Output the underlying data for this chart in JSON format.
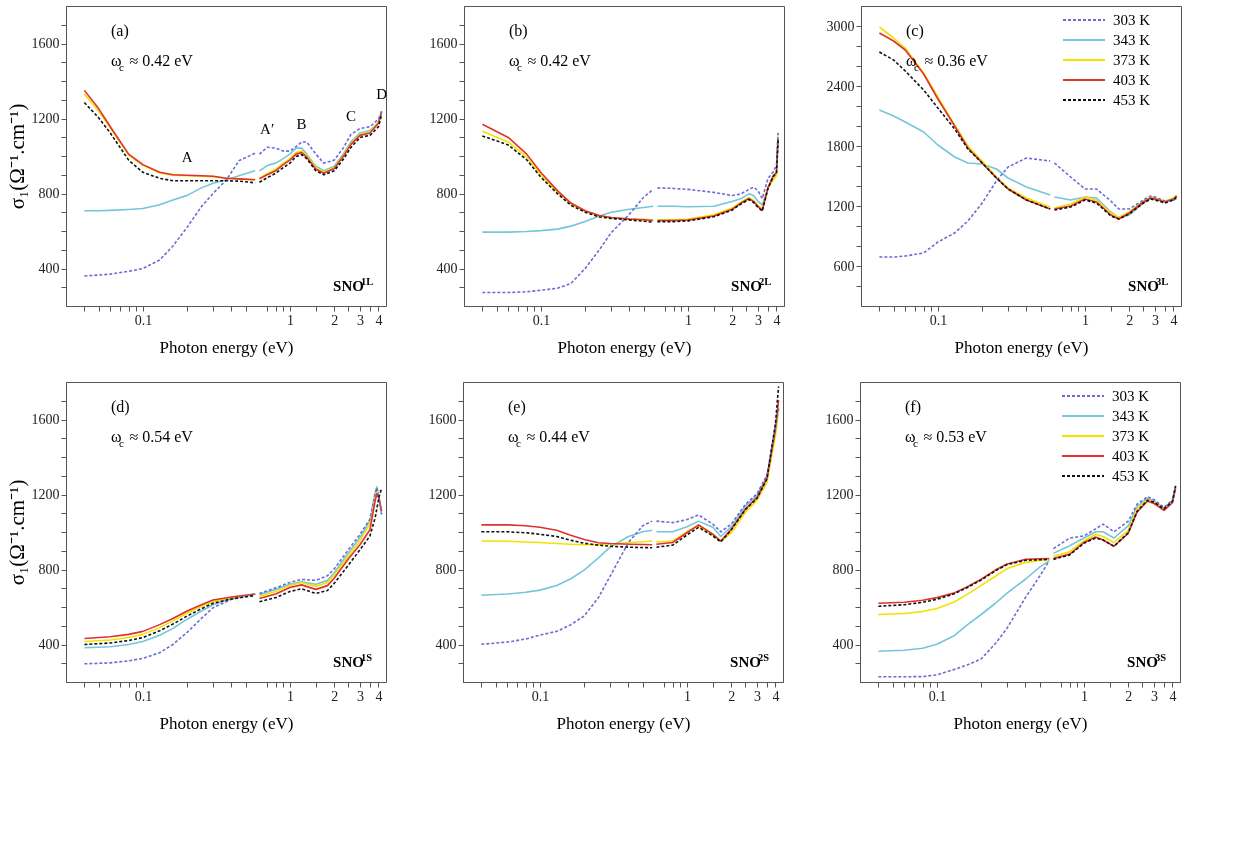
{
  "chart_data": [
    {
      "type": "line",
      "log": "x",
      "xlim": [
        0.03,
        4.5
      ],
      "ylim": [
        200,
        1800
      ],
      "ylabel": "σ₁(Ω⁻¹.cm⁻¹)",
      "xlabel": "Photon energy (eV)",
      "annotations": [
        "(a)",
        "ω$_{c}$ ≈ 0.42 eV",
        "SNO$^{1L}$",
        {
          "text": "A",
          "x": 0.2,
          "y": 897
        },
        {
          "text": "A′",
          "x": 0.7,
          "y": 1047
        },
        {
          "text": "B",
          "x": 1.2,
          "y": 1075
        },
        {
          "text": "C",
          "x": 2.6,
          "y": 1115
        },
        {
          "text": "D",
          "x": 4.2,
          "y": 1236
        }
      ],
      "xticks": [
        {
          "value": 0.04,
          "label": null
        },
        {
          "value": 0.05,
          "label": null
        },
        {
          "value": 0.06,
          "label": null
        },
        {
          "value": 0.07,
          "label": null
        },
        {
          "value": 0.08,
          "label": null
        },
        {
          "value": 0.09,
          "label": null
        },
        0.1,
        {
          "value": 0.2,
          "label": null
        },
        {
          "value": 0.3,
          "label": null
        },
        {
          "value": 0.4,
          "label": null
        },
        {
          "value": 0.5,
          "label": null
        },
        {
          "value": 0.7,
          "label": null
        },
        {
          "value": 0.8,
          "label": null
        },
        {
          "value": 0.9,
          "label": null
        },
        1,
        {
          "value": 1.5,
          "label": null
        },
        2,
        {
          "value": 2.5,
          "label": null
        },
        3,
        {
          "value": 3.5,
          "label": null
        },
        4
      ],
      "yticks": [
        {
          "value": 300,
          "label": null
        },
        400,
        {
          "value": 500,
          "label": null
        },
        {
          "value": 600,
          "label": null
        },
        {
          "value": 700,
          "label": null
        },
        800,
        {
          "value": 900,
          "label": null
        },
        {
          "value": 1000,
          "label": null
        },
        {
          "value": 1100,
          "label": null
        },
        1200,
        {
          "value": 1300,
          "label": null
        },
        {
          "value": 1400,
          "label": null
        },
        {
          "value": 1500,
          "label": null
        },
        1600,
        {
          "value": 1700,
          "label": null
        }
      ],
      "x": [
        0.04,
        0.05,
        0.06,
        0.08,
        0.1,
        0.13,
        0.16,
        0.2,
        0.25,
        0.3,
        0.37,
        0.45,
        0.58,
        0.6,
        0.62,
        0.7,
        0.8,
        0.9,
        1,
        1.1,
        1.2,
        1.3,
        1.5,
        1.7,
        2,
        2.3,
        2.6,
        3,
        3.5,
        4,
        4.2
      ],
      "series": [
        {
          "color": "#6b6bd6",
          "line_style": "dashed",
          "values": [
            360,
            365,
            370,
            385,
            400,
            445,
            520,
            620,
            730,
            800,
            873,
            975,
            1015,
            null,
            1010,
            1047,
            1042,
            1026,
            1026,
            1050,
            1075,
            1075,
            1010,
            962,
            978,
            1042,
            1115,
            1147,
            1156,
            1196,
            1236
          ]
        },
        {
          "color": "#74c6d9",
          "line_style": "solid",
          "values": [
            708,
            708,
            710,
            715,
            720,
            740,
            765,
            790,
            830,
            855,
            873,
            895,
            921,
            null,
            921,
            949,
            962,
            986,
            1010,
            1042,
            1042,
            1010,
            946,
            921,
            946,
            1010,
            1075,
            1123,
            1136,
            1180,
            1228
          ]
        },
        {
          "color": "#f2e200",
          "line_style": "solid",
          "values": [
            1330,
            1240,
            1150,
            1005,
            950,
            910,
            897,
            895,
            892,
            890,
            881,
            878,
            873,
            null,
            881,
            905,
            929,
            962,
            986,
            1018,
            1026,
            1002,
            938,
            913,
            938,
            1002,
            1067,
            1115,
            1128,
            1180,
            1236
          ]
        },
        {
          "color": "#e0322c",
          "line_style": "solid",
          "values": [
            1350,
            1253,
            1156,
            1010,
            954,
            913,
            900,
            897,
            895,
            892,
            881,
            878,
            873,
            null,
            878,
            900,
            921,
            954,
            978,
            1010,
            1018,
            994,
            929,
            908,
            933,
            997,
            1062,
            1110,
            1123,
            1175,
            1239
          ]
        },
        {
          "color": "#111111",
          "line_style": "dashed",
          "values": [
            1285,
            1204,
            1123,
            978,
            913,
            881,
            868,
            868,
            868,
            868,
            868,
            866,
            857,
            null,
            860,
            884,
            908,
            938,
            962,
            997,
            1007,
            986,
            921,
            900,
            921,
            981,
            1046,
            1099,
            1110,
            1156,
            1220
          ]
        }
      ]
    },
    {
      "type": "line",
      "log": "x",
      "xlim": [
        0.03,
        4.5
      ],
      "ylim": [
        200,
        1800
      ],
      "xlabel": "Photon energy (eV)",
      "annotations": [
        "(b)",
        "ω$_{c}$ ≈ 0.42 eV",
        "SNO$^{2L}$"
      ],
      "xticks": [
        {
          "value": 0.04,
          "label": null
        },
        {
          "value": 0.05,
          "label": null
        },
        {
          "value": 0.06,
          "label": null
        },
        {
          "value": 0.07,
          "label": null
        },
        {
          "value": 0.08,
          "label": null
        },
        {
          "value": 0.09,
          "label": null
        },
        0.1,
        {
          "value": 0.2,
          "label": null
        },
        {
          "value": 0.3,
          "label": null
        },
        {
          "value": 0.4,
          "label": null
        },
        {
          "value": 0.5,
          "label": null
        },
        {
          "value": 0.7,
          "label": null
        },
        {
          "value": 0.8,
          "label": null
        },
        {
          "value": 0.9,
          "label": null
        },
        1,
        {
          "value": 1.5,
          "label": null
        },
        2,
        {
          "value": 2.5,
          "label": null
        },
        3,
        {
          "value": 3.5,
          "label": null
        },
        4
      ],
      "yticks": [
        {
          "value": 300,
          "label": null
        },
        400,
        {
          "value": 500,
          "label": null
        },
        {
          "value": 600,
          "label": null
        },
        {
          "value": 700,
          "label": null
        },
        800,
        {
          "value": 900,
          "label": null
        },
        {
          "value": 1000,
          "label": null
        },
        {
          "value": 1100,
          "label": null
        },
        1200,
        {
          "value": 1300,
          "label": null
        },
        {
          "value": 1400,
          "label": null
        },
        {
          "value": 1500,
          "label": null
        },
        1600,
        {
          "value": 1700,
          "label": null
        }
      ],
      "x": [
        0.04,
        0.06,
        0.08,
        0.1,
        0.13,
        0.16,
        0.2,
        0.25,
        0.3,
        0.4,
        0.5,
        0.58,
        0.6,
        0.62,
        0.8,
        1,
        1.5,
        2,
        2.3,
        2.6,
        2.8,
        3,
        3.2,
        3.5,
        3.8,
        4,
        4.1
      ],
      "series": [
        {
          "color": "#6b6bd6",
          "line_style": "dashed",
          "values": [
            272,
            272,
            276,
            284,
            295,
            320,
            400,
            500,
            590,
            690,
            780,
            822,
            null,
            830,
            827,
            822,
            806,
            789,
            798,
            822,
            834,
            814,
            773,
            880,
            915,
            950,
            1124
          ]
        },
        {
          "color": "#74c6d9",
          "line_style": "solid",
          "values": [
            594,
            594,
            597,
            602,
            610,
            626,
            651,
            680,
            700,
            716,
            725,
            732,
            null,
            732,
            732,
            729,
            732,
            757,
            773,
            798,
            789,
            757,
            740,
            830,
            887,
            null,
            null
          ]
        },
        {
          "color": "#f2e200",
          "line_style": "solid",
          "values": [
            1132,
            1075,
            994,
            899,
            806,
            744,
            705,
            680,
            672,
            664,
            662,
            659,
            null,
            660,
            660,
            664,
            686,
            722,
            755,
            778,
            762,
            735,
            715,
            832,
            870,
            895,
            1115
          ]
        },
        {
          "color": "#e0322c",
          "line_style": "solid",
          "values": [
            1169,
            1099,
            1010,
            912,
            814,
            749,
            708,
            683,
            672,
            664,
            660,
            656,
            null,
            656,
            656,
            659,
            680,
            716,
            749,
            773,
            757,
            730,
            710,
            830,
            894,
            912,
            1091
          ]
        },
        {
          "color": "#111111",
          "line_style": "dashed",
          "values": [
            1107,
            1059,
            980,
            887,
            798,
            737,
            700,
            675,
            667,
            659,
            652,
            647,
            null,
            650,
            650,
            654,
            676,
            712,
            745,
            768,
            752,
            726,
            706,
            826,
            890,
            908,
            1085
          ]
        }
      ]
    },
    {
      "type": "line",
      "log": "x",
      "xlim": [
        0.03,
        4.5
      ],
      "ylim": [
        200,
        3200
      ],
      "xlabel": "Photon energy (eV)",
      "legend": "top right",
      "annotations": [
        "(c)",
        "ω$_{c}$ ≈ 0.36 eV",
        "SNO$^{3L}$"
      ],
      "xticks": [
        {
          "value": 0.04,
          "label": null
        },
        {
          "value": 0.05,
          "label": null
        },
        {
          "value": 0.06,
          "label": null
        },
        {
          "value": 0.07,
          "label": null
        },
        {
          "value": 0.08,
          "label": null
        },
        {
          "value": 0.09,
          "label": null
        },
        0.1,
        {
          "value": 0.2,
          "label": null
        },
        {
          "value": 0.3,
          "label": null
        },
        {
          "value": 0.4,
          "label": null
        },
        {
          "value": 0.5,
          "label": null
        },
        {
          "value": 0.7,
          "label": null
        },
        {
          "value": 0.8,
          "label": null
        },
        {
          "value": 0.9,
          "label": null
        },
        1,
        {
          "value": 1.5,
          "label": null
        },
        2,
        {
          "value": 2.5,
          "label": null
        },
        3,
        {
          "value": 3.5,
          "label": null
        },
        4
      ],
      "yticks": [
        {
          "value": 400,
          "label": null
        },
        600,
        {
          "value": 800,
          "label": null
        },
        {
          "value": 1000,
          "label": null
        },
        1200,
        {
          "value": 1400,
          "label": null
        },
        {
          "value": 1600,
          "label": null
        },
        1800,
        {
          "value": 2000,
          "label": null
        },
        {
          "value": 2200,
          "label": null
        },
        2400,
        {
          "value": 2600,
          "label": null
        },
        {
          "value": 2800,
          "label": null
        },
        3000
      ],
      "x": [
        0.04,
        0.05,
        0.06,
        0.08,
        0.1,
        0.13,
        0.16,
        0.2,
        0.25,
        0.3,
        0.4,
        0.58,
        0.6,
        0.62,
        0.8,
        1,
        1.2,
        1.5,
        1.7,
        2,
        2.5,
        2.8,
        3,
        3.5,
        4,
        4.2
      ],
      "series": [
        {
          "name": "303 K",
          "color": "#6b6bd6",
          "line_style": "dashed",
          "values": [
            690,
            690,
            700,
            730,
            840,
            930,
            1050,
            1230,
            1450,
            1590,
            1680,
            1650,
            null,
            1630,
            1490,
            1370,
            1370,
            1250,
            1170,
            1170,
            1260,
            1300,
            1290,
            1250,
            1260,
            1280
          ]
        },
        {
          "name": "343 K",
          "color": "#74c6d9",
          "line_style": "solid",
          "values": [
            2160,
            2100,
            2040,
            1940,
            1810,
            1690,
            1630,
            1620,
            1570,
            1480,
            1390,
            1310,
            null,
            1290,
            1260,
            1290,
            1280,
            1140,
            1080,
            1110,
            1230,
            1280,
            1270,
            1250,
            1260,
            1270
          ]
        },
        {
          "name": "373 K",
          "color": "#f2e200",
          "line_style": "solid",
          "values": [
            2990,
            2880,
            2780,
            2530,
            2290,
            2010,
            1800,
            1650,
            1490,
            1380,
            1280,
            1190,
            null,
            1180,
            1220,
            1290,
            1260,
            1130,
            1090,
            1140,
            1250,
            1290,
            1280,
            1250,
            1280,
            1310
          ]
        },
        {
          "name": "403 K",
          "color": "#e0322c",
          "line_style": "solid",
          "values": [
            2930,
            2850,
            2760,
            2520,
            2270,
            2000,
            1780,
            1630,
            1480,
            1370,
            1260,
            1170,
            null,
            1170,
            1200,
            1270,
            1240,
            1110,
            1070,
            1130,
            1240,
            1280,
            1270,
            1240,
            1270,
            1300
          ]
        },
        {
          "name": "453 K",
          "color": "#111111",
          "line_style": "dashed",
          "values": [
            2740,
            2660,
            2550,
            2360,
            2180,
            1970,
            1770,
            1630,
            1480,
            1370,
            1260,
            1170,
            null,
            1160,
            1190,
            1260,
            1230,
            1100,
            1070,
            1120,
            1230,
            1270,
            1260,
            1230,
            1260,
            1290
          ]
        }
      ]
    },
    {
      "type": "line",
      "log": "x",
      "xlim": [
        0.03,
        4.5
      ],
      "ylim": [
        200,
        1800
      ],
      "ylabel": "σ₁(Ω⁻¹.cm⁻¹)",
      "xlabel": "Photon energy (eV)",
      "annotations": [
        "(d)",
        "ω$_{c}$ ≈ 0.54 eV",
        "SNO$^{1S}$"
      ],
      "xticks": [
        {
          "value": 0.04,
          "label": null
        },
        {
          "value": 0.05,
          "label": null
        },
        {
          "value": 0.06,
          "label": null
        },
        {
          "value": 0.07,
          "label": null
        },
        {
          "value": 0.08,
          "label": null
        },
        {
          "value": 0.09,
          "label": null
        },
        0.1,
        {
          "value": 0.2,
          "label": null
        },
        {
          "value": 0.3,
          "label": null
        },
        {
          "value": 0.4,
          "label": null
        },
        {
          "value": 0.5,
          "label": null
        },
        {
          "value": 0.7,
          "label": null
        },
        {
          "value": 0.8,
          "label": null
        },
        {
          "value": 0.9,
          "label": null
        },
        1,
        {
          "value": 1.5,
          "label": null
        },
        2,
        {
          "value": 2.5,
          "label": null
        },
        3,
        {
          "value": 3.5,
          "label": null
        },
        4
      ],
      "yticks": [
        {
          "value": 300,
          "label": null
        },
        400,
        {
          "value": 500,
          "label": null
        },
        {
          "value": 600,
          "label": null
        },
        {
          "value": 700,
          "label": null
        },
        800,
        {
          "value": 900,
          "label": null
        },
        {
          "value": 1000,
          "label": null
        },
        {
          "value": 1100,
          "label": null
        },
        1200,
        {
          "value": 1300,
          "label": null
        },
        {
          "value": 1400,
          "label": null
        },
        {
          "value": 1500,
          "label": null
        },
        1600,
        {
          "value": 1700,
          "label": null
        }
      ],
      "x": [
        0.04,
        0.06,
        0.08,
        0.1,
        0.13,
        0.16,
        0.2,
        0.25,
        0.3,
        0.4,
        0.58,
        0.6,
        0.62,
        0.8,
        1,
        1.2,
        1.5,
        1.8,
        2,
        2.5,
        3,
        3.5,
        3.8,
        3.9,
        4.05,
        4.2
      ],
      "series": [
        {
          "color": "#6b6bd6",
          "line_style": "dashed",
          "values": [
            297,
            302,
            313,
            326,
            356,
            400,
            465,
            539,
            596,
            641,
            669,
            null,
            672,
            702,
            731,
            747,
            742,
            767,
            803,
            906,
            988,
            1069,
            1208,
            1237,
            1167,
            1094
          ]
        },
        {
          "color": "#74c6d9",
          "line_style": "solid",
          "values": [
            383,
            388,
            400,
            416,
            449,
            486,
            535,
            579,
            612,
            645,
            669,
            null,
            666,
            694,
            721,
            734,
            721,
            742,
            783,
            889,
            972,
            1061,
            1208,
            1241,
            1175,
            1094
          ]
        },
        {
          "color": "#f2e200",
          "line_style": "solid",
          "values": [
            416,
            424,
            437,
            454,
            490,
            526,
            568,
            604,
            628,
            650,
            669,
            null,
            656,
            683,
            714,
            731,
            710,
            731,
            770,
            873,
            955,
            1045,
            1192,
            1228,
            1167,
            1110
          ]
        },
        {
          "color": "#e0322c",
          "line_style": "solid",
          "values": [
            432,
            441,
            454,
            470,
            506,
            539,
            579,
            612,
            637,
            653,
            669,
            null,
            645,
            669,
            704,
            718,
            694,
            714,
            753,
            857,
            933,
            1012,
            1167,
            1205,
            1175,
            1110
          ]
        },
        {
          "color": "#111111",
          "line_style": "dashed",
          "values": [
            400,
            408,
            421,
            437,
            473,
            509,
            552,
            591,
            620,
            643,
            661,
            null,
            628,
            650,
            683,
            697,
            672,
            688,
            726,
            824,
            906,
            979,
            1077,
            1126,
            1192,
            1233
          ]
        }
      ]
    },
    {
      "type": "line",
      "log": "x",
      "xlim": [
        0.03,
        4.5
      ],
      "ylim": [
        200,
        1800
      ],
      "xlabel": "Photon energy (eV)",
      "annotations": [
        "(e)",
        "ω$_{c}$ ≈ 0.44 eV",
        "SNO$^{2S}$"
      ],
      "xticks": [
        {
          "value": 0.04,
          "label": null
        },
        {
          "value": 0.05,
          "label": null
        },
        {
          "value": 0.06,
          "label": null
        },
        {
          "value": 0.07,
          "label": null
        },
        {
          "value": 0.08,
          "label": null
        },
        {
          "value": 0.09,
          "label": null
        },
        0.1,
        {
          "value": 0.2,
          "label": null
        },
        {
          "value": 0.3,
          "label": null
        },
        {
          "value": 0.4,
          "label": null
        },
        {
          "value": 0.5,
          "label": null
        },
        {
          "value": 0.7,
          "label": null
        },
        {
          "value": 0.8,
          "label": null
        },
        {
          "value": 0.9,
          "label": null
        },
        1,
        {
          "value": 1.5,
          "label": null
        },
        2,
        {
          "value": 2.5,
          "label": null
        },
        3,
        {
          "value": 3.5,
          "label": null
        },
        4
      ],
      "yticks": [
        {
          "value": 300,
          "label": null
        },
        400,
        {
          "value": 500,
          "label": null
        },
        {
          "value": 600,
          "label": null
        },
        {
          "value": 700,
          "label": null
        },
        800,
        {
          "value": 900,
          "label": null
        },
        {
          "value": 1000,
          "label": null
        },
        {
          "value": 1100,
          "label": null
        },
        1200,
        {
          "value": 1300,
          "label": null
        },
        {
          "value": 1400,
          "label": null
        },
        {
          "value": 1500,
          "label": null
        },
        1600,
        {
          "value": 1700,
          "label": null
        }
      ],
      "x": [
        0.04,
        0.06,
        0.08,
        0.1,
        0.13,
        0.16,
        0.2,
        0.25,
        0.3,
        0.4,
        0.5,
        0.58,
        0.6,
        0.62,
        0.8,
        1,
        1.2,
        1.5,
        1.7,
        2,
        2.5,
        3,
        3.5,
        4,
        4.2
      ],
      "series": [
        {
          "color": "#6b6bd6",
          "line_style": "dashed",
          "values": [
            401,
            413,
            429,
            450,
            470,
            503,
            552,
            650,
            764,
            944,
            1033,
            1058,
            null,
            1058,
            1050,
            1066,
            1091,
            1042,
            1001,
            1042,
            1148,
            1205,
            1303,
            1564,
            1662
          ]
        },
        {
          "color": "#74c6d9",
          "line_style": "solid",
          "values": [
            663,
            669,
            679,
            690,
            715,
            748,
            797,
            862,
            919,
            976,
            1001,
            1009,
            null,
            1001,
            1001,
            1028,
            1058,
            1025,
            976,
            1028,
            1139,
            1197,
            1295,
            1556,
            1662
          ]
        },
        {
          "color": "#f2e200",
          "line_style": "solid",
          "values": [
            952,
            951,
            947,
            944,
            939,
            935,
            932,
            932,
            935,
            944,
            948,
            952,
            null,
            947,
            952,
            1001,
            1033,
            984,
            952,
            995,
            1105,
            1170,
            1265,
            1515,
            1650
          ]
        },
        {
          "color": "#e0322c",
          "line_style": "solid",
          "values": [
            1038,
            1038,
            1033,
            1025,
            1009,
            984,
            960,
            943,
            939,
            935,
            933,
            932,
            null,
            935,
            944,
            996,
            1038,
            989,
            952,
            1014,
            1123,
            1185,
            1286,
            1548,
            1703
          ]
        },
        {
          "color": "#111111",
          "line_style": "dashed",
          "values": [
            1001,
            1001,
            996,
            988,
            976,
            957,
            940,
            930,
            924,
            919,
            917,
            916,
            null,
            919,
            930,
            984,
            1025,
            979,
            947,
            1012,
            1120,
            1180,
            1283,
            1580,
            1776
          ]
        }
      ]
    },
    {
      "type": "line",
      "log": "x",
      "xlim": [
        0.03,
        4.5
      ],
      "ylim": [
        200,
        1800
      ],
      "xlabel": "Photon energy (eV)",
      "legend": "top right",
      "annotations": [
        "(f)",
        "ω$_{c}$ ≈ 0.53 eV",
        "SNO$^{3S}$"
      ],
      "xticks": [
        {
          "value": 0.04,
          "label": null
        },
        {
          "value": 0.05,
          "label": null
        },
        {
          "value": 0.06,
          "label": null
        },
        {
          "value": 0.07,
          "label": null
        },
        {
          "value": 0.08,
          "label": null
        },
        {
          "value": 0.09,
          "label": null
        },
        0.1,
        {
          "value": 0.2,
          "label": null
        },
        {
          "value": 0.3,
          "label": null
        },
        {
          "value": 0.4,
          "label": null
        },
        {
          "value": 0.5,
          "label": null
        },
        {
          "value": 0.7,
          "label": null
        },
        {
          "value": 0.8,
          "label": null
        },
        {
          "value": 0.9,
          "label": null
        },
        1,
        {
          "value": 1.5,
          "label": null
        },
        2,
        {
          "value": 2.5,
          "label": null
        },
        3,
        {
          "value": 3.5,
          "label": null
        },
        4
      ],
      "yticks": [
        {
          "value": 300,
          "label": null
        },
        400,
        {
          "value": 500,
          "label": null
        },
        {
          "value": 600,
          "label": null
        },
        {
          "value": 700,
          "label": null
        },
        800,
        {
          "value": 900,
          "label": null
        },
        {
          "value": 1000,
          "label": null
        },
        {
          "value": 1100,
          "label": null
        },
        1200,
        {
          "value": 1300,
          "label": null
        },
        {
          "value": 1400,
          "label": null
        },
        {
          "value": 1500,
          "label": null
        },
        1600,
        {
          "value": 1700,
          "label": null
        }
      ],
      "x": [
        0.04,
        0.06,
        0.08,
        0.1,
        0.13,
        0.16,
        0.2,
        0.25,
        0.3,
        0.4,
        0.5,
        0.58,
        0.6,
        0.62,
        0.8,
        1,
        1.2,
        1.35,
        1.6,
        2,
        2.3,
        2.7,
        3,
        3.5,
        4,
        4.2
      ],
      "series": [
        {
          "name": "303 K",
          "color": "#6b6bd6",
          "line_style": "dashed",
          "values": [
            228,
            228,
            229,
            238,
            266,
            290,
            323,
            405,
            487,
            650,
            764,
            846,
            null,
            911,
            968,
            979,
            1017,
            1042,
            1001,
            1058,
            1148,
            1188,
            1172,
            1131,
            1172,
            1246
          ]
        },
        {
          "name": "343 K",
          "color": "#74c6d9",
          "line_style": "solid",
          "values": [
            364,
            369,
            380,
            401,
            445,
            503,
            560,
            620,
            674,
            748,
            813,
            846,
            null,
            886,
            927,
            968,
            1001,
            1001,
            968,
            1033,
            1136,
            1180,
            1164,
            1126,
            1164,
            1246
          ]
        },
        {
          "name": "373 K",
          "color": "#f2e200",
          "line_style": "solid",
          "values": [
            560,
            565,
            576,
            592,
            625,
            666,
            715,
            764,
            805,
            838,
            848,
            854,
            null,
            870,
            895,
            952,
            988,
            976,
            944,
            1009,
            1123,
            1172,
            1159,
            1120,
            1159,
            1241
          ]
        },
        {
          "name": "403 K",
          "color": "#e0322c",
          "line_style": "solid",
          "values": [
            620,
            625,
            636,
            650,
            674,
            707,
            748,
            797,
            829,
            854,
            857,
            859,
            null,
            859,
            882,
            944,
            973,
            957,
            924,
            993,
            1107,
            1164,
            1152,
            1115,
            1156,
            1237
          ]
        },
        {
          "name": "453 K",
          "color": "#111111",
          "line_style": "dashed",
          "values": [
            604,
            612,
            625,
            641,
            669,
            703,
            744,
            793,
            826,
            849,
            852,
            854,
            null,
            854,
            878,
            940,
            968,
            957,
            924,
            996,
            1110,
            1169,
            1159,
            1123,
            1164,
            1246
          ]
        }
      ]
    }
  ]
}
